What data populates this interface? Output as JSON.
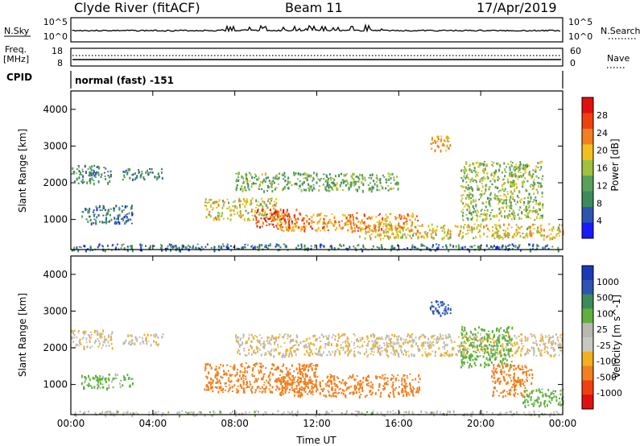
{
  "header": {
    "title": "Clyde River (fitACF)",
    "beam": "Beam 11",
    "date": "17/Apr/2019"
  },
  "strips": {
    "nsky_label": "N.Sky",
    "nsky_ticks": [
      "10^5",
      "10^0"
    ],
    "nsearch_label": "N.Search",
    "nsearch_ticks": [
      "10^5",
      "10^0"
    ],
    "freq_label": "Freq.",
    "freq_unit": "[MHz]",
    "freq_ticks": [
      "18",
      "8"
    ],
    "nave_label": "Nave",
    "nave_ticks": [
      "60",
      "0"
    ],
    "cpid_label": "CPID",
    "cpid_value": "normal (fast) -151"
  },
  "colors": {
    "power": [
      "#1a1aff",
      "#2d55b0",
      "#3d8a5a",
      "#5aa05a",
      "#a0c040",
      "#f0c020",
      "#f08020",
      "#f04010",
      "#e01010"
    ],
    "velocity": [
      "#e01010",
      "#f04010",
      "#f08020",
      "#f0b020",
      "#c8c8c0",
      "#b8b8b0",
      "#60b040",
      "#3d8a5a",
      "#2d55b0",
      "#1a3ab8"
    ]
  },
  "chart_data": [
    {
      "type": "heatmap",
      "panel": "power",
      "ylabel": "Slant Range [km]",
      "yticks": [
        "4000",
        "3000",
        "2000",
        "1000"
      ],
      "ylim": [
        180,
        4500
      ],
      "xlim": [
        0,
        24
      ],
      "colorbar_label": "Power [dB]",
      "colorbar_ticks": [
        "28",
        "24",
        "20",
        "16",
        "12",
        "8",
        "4"
      ],
      "colorbar_range": [
        0,
        32
      ],
      "echo_regions": [
        {
          "t0": 0.0,
          "t1": 2.0,
          "r0": 2000,
          "r1": 2500,
          "value": 10
        },
        {
          "t0": 2.5,
          "t1": 4.5,
          "r0": 2100,
          "r1": 2400,
          "value": 9
        },
        {
          "t0": 0.5,
          "t1": 3.0,
          "r0": 900,
          "r1": 1400,
          "value": 8
        },
        {
          "t0": 6.5,
          "t1": 10.0,
          "r0": 1000,
          "r1": 1600,
          "value": 18
        },
        {
          "t0": 9.0,
          "t1": 11.0,
          "r0": 800,
          "r1": 1300,
          "value": 27
        },
        {
          "t0": 10.0,
          "t1": 17.0,
          "r0": 700,
          "r1": 1200,
          "value": 22
        },
        {
          "t0": 8.0,
          "t1": 16.0,
          "r0": 1800,
          "r1": 2300,
          "value": 13
        },
        {
          "t0": 17.5,
          "t1": 18.5,
          "r0": 2900,
          "r1": 3300,
          "value": 20
        },
        {
          "t0": 19.0,
          "t1": 23.0,
          "r0": 1000,
          "r1": 2600,
          "value": 15
        },
        {
          "t0": 14.0,
          "t1": 24.0,
          "r0": 500,
          "r1": 900,
          "value": 19
        },
        {
          "t0": 0.0,
          "t1": 24.0,
          "r0": 180,
          "r1": 350,
          "value": 8
        }
      ]
    },
    {
      "type": "heatmap",
      "panel": "velocity",
      "ylabel": "Slant Range [km]",
      "yticks": [
        "4000",
        "3000",
        "2000",
        "1000"
      ],
      "ylim": [
        180,
        4500
      ],
      "xlim": [
        0,
        24
      ],
      "xticks": [
        "00:00",
        "04:00",
        "08:00",
        "12:00",
        "16:00",
        "20:00",
        "00:00"
      ],
      "xlabel": "Time UT",
      "colorbar_label": "Velocity [m s^-1]",
      "colorbar_ticks": [
        "1000",
        "500",
        "100",
        "25",
        "-25",
        "-100",
        "-500",
        "-1000"
      ],
      "echo_regions": [
        {
          "t0": 0.0,
          "t1": 2.0,
          "r0": 2000,
          "r1": 2500,
          "value": 0
        },
        {
          "t0": 2.5,
          "t1": 4.5,
          "r0": 2100,
          "r1": 2400,
          "value": 0
        },
        {
          "t0": 0.5,
          "t1": 3.0,
          "r0": 900,
          "r1": 1300,
          "value": 80
        },
        {
          "t0": 6.5,
          "t1": 12.0,
          "r0": 800,
          "r1": 1600,
          "value": -150
        },
        {
          "t0": 10.0,
          "t1": 17.0,
          "r0": 700,
          "r1": 1300,
          "value": -120
        },
        {
          "t0": 8.0,
          "t1": 24.0,
          "r0": 1800,
          "r1": 2400,
          "value": 0
        },
        {
          "t0": 17.5,
          "t1": 18.5,
          "r0": 2900,
          "r1": 3300,
          "value": 900
        },
        {
          "t0": 19.0,
          "t1": 21.5,
          "r0": 1500,
          "r1": 2600,
          "value": 200
        },
        {
          "t0": 20.5,
          "t1": 22.5,
          "r0": 700,
          "r1": 1600,
          "value": -200
        },
        {
          "t0": 22.0,
          "t1": 24.0,
          "r0": 400,
          "r1": 900,
          "value": 150
        },
        {
          "t0": 0.0,
          "t1": 24.0,
          "r0": 180,
          "r1": 300,
          "value": 30
        }
      ]
    }
  ]
}
